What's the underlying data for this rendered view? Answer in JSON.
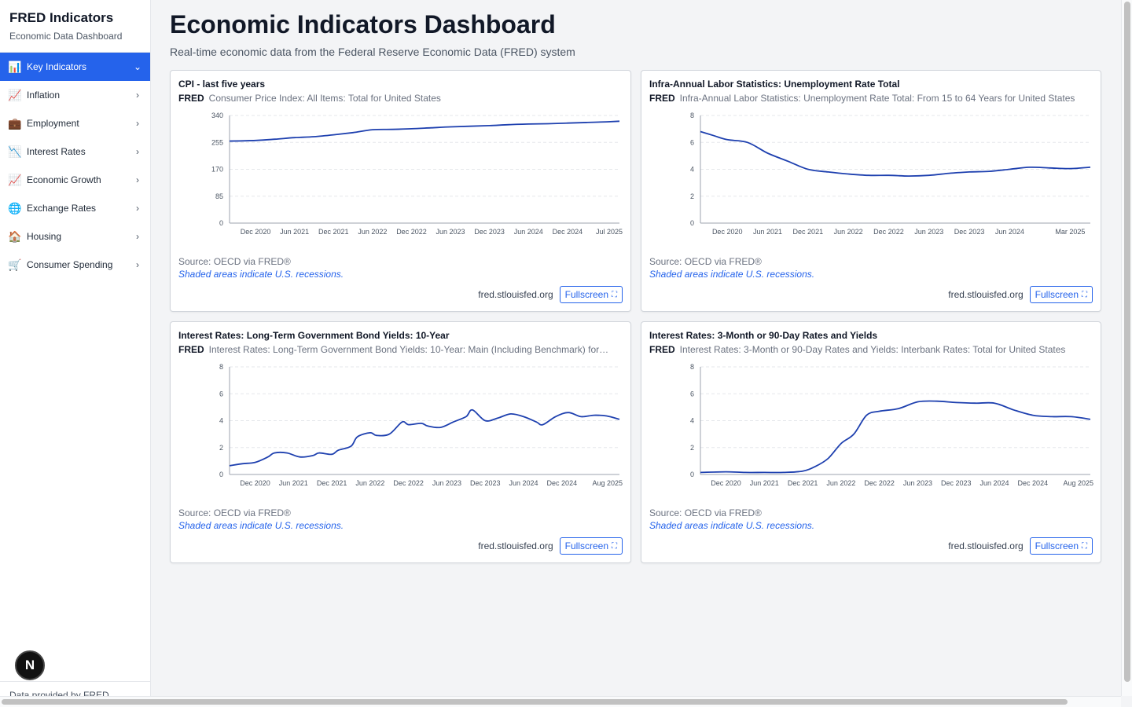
{
  "sidebar": {
    "title": "FRED Indicators",
    "subtitle": "Economic Data Dashboard",
    "items": [
      {
        "label": "Key Indicators",
        "icon": "bar-chart-icon",
        "glyph": "📊",
        "active": true
      },
      {
        "label": "Inflation",
        "icon": "trend-up-icon",
        "glyph": "📈",
        "active": false
      },
      {
        "label": "Employment",
        "icon": "briefcase-icon",
        "glyph": "💼",
        "active": false
      },
      {
        "label": "Interest Rates",
        "icon": "trend-down-icon",
        "glyph": "📉",
        "active": false
      },
      {
        "label": "Economic Growth",
        "icon": "trend-up-icon",
        "glyph": "📈",
        "active": false
      },
      {
        "label": "Exchange Rates",
        "icon": "globe-icon",
        "glyph": "🌐",
        "active": false
      },
      {
        "label": "Housing",
        "icon": "house-icon",
        "glyph": "🏠",
        "active": false
      },
      {
        "label": "Consumer Spending",
        "icon": "cart-icon",
        "glyph": "🛒",
        "active": false
      }
    ],
    "footer": "Data provided by FRED",
    "badge": "N"
  },
  "header": {
    "title": "Economic Indicators Dashboard",
    "subtitle": "Real-time economic data from the Federal Reserve Economic Data (FRED) system"
  },
  "cards": [
    {
      "title": "CPI - last five years",
      "fred": "FRED",
      "description": "Consumer Price Index: All Items: Total for United States",
      "source": "Source: OECD via FRED®",
      "note": "Shaded areas indicate U.S. recessions.",
      "domain": "fred.stlouisfed.org",
      "button": "Fullscreen"
    },
    {
      "title": "Infra-Annual Labor Statistics: Unemployment Rate Total",
      "fred": "FRED",
      "description": "Infra-Annual Labor Statistics: Unemployment Rate Total: From 15 to 64 Years for United States",
      "source": "Source: OECD via FRED®",
      "note": "Shaded areas indicate U.S. recessions.",
      "domain": "fred.stlouisfed.org",
      "button": "Fullscreen"
    },
    {
      "title": "Interest Rates: Long-Term Government Bond Yields: 10-Year",
      "fred": "FRED",
      "description": "Interest Rates: Long-Term Government Bond Yields: 10-Year: Main (Including Benchmark) for…",
      "source": "Source: OECD via FRED®",
      "note": "Shaded areas indicate U.S. recessions.",
      "domain": "fred.stlouisfed.org",
      "button": "Fullscreen"
    },
    {
      "title": "Interest Rates: 3-Month or 90-Day Rates and Yields",
      "fred": "FRED",
      "description": "Interest Rates: 3-Month or 90-Day Rates and Yields: Interbank Rates: Total for United States",
      "source": "Source: OECD via FRED®",
      "note": "Shaded areas indicate U.S. recessions.",
      "domain": "fred.stlouisfed.org",
      "button": "Fullscreen"
    }
  ],
  "colors": {
    "accent": "#2563eb",
    "line": "#1e40af",
    "grid": "#e5e7eb"
  },
  "chart_data": [
    {
      "type": "line",
      "ylim": [
        0,
        340
      ],
      "yticks": [
        "0",
        "85",
        "170",
        "255",
        "340"
      ],
      "xticks": [
        "Dec 2020",
        "Jun 2021",
        "Dec 2021",
        "Jun 2022",
        "Dec 2022",
        "Jun 2023",
        "Dec 2023",
        "Jun 2024",
        "Dec 2024",
        "Jul 2025"
      ],
      "x_range": [
        "2020-08",
        "2025-08"
      ],
      "grid": true,
      "points": [
        [
          "2020-08",
          259
        ],
        [
          "2020-12",
          261
        ],
        [
          "2021-03",
          265
        ],
        [
          "2021-06",
          270
        ],
        [
          "2021-09",
          273
        ],
        [
          "2021-12",
          279
        ],
        [
          "2022-03",
          286
        ],
        [
          "2022-06",
          295
        ],
        [
          "2022-09",
          296
        ],
        [
          "2022-12",
          298
        ],
        [
          "2023-03",
          301
        ],
        [
          "2023-06",
          304
        ],
        [
          "2023-09",
          306
        ],
        [
          "2023-12",
          308
        ],
        [
          "2024-03",
          311
        ],
        [
          "2024-06",
          313
        ],
        [
          "2024-09",
          314
        ],
        [
          "2024-12",
          316
        ],
        [
          "2025-03",
          318
        ],
        [
          "2025-06",
          320
        ],
        [
          "2025-08",
          322
        ]
      ]
    },
    {
      "type": "line",
      "ylim": [
        0,
        8
      ],
      "yticks": [
        "0",
        "2",
        "4",
        "6",
        "8"
      ],
      "xticks": [
        "Dec 2020",
        "Jun 2021",
        "Dec 2021",
        "Jun 2022",
        "Dec 2022",
        "Jun 2023",
        "Dec 2023",
        "Jun 2024",
        "Mar 2025"
      ],
      "x_range": [
        "2020-08",
        "2025-06"
      ],
      "grid": true,
      "points": [
        [
          "2020-08",
          6.8
        ],
        [
          "2020-10",
          6.5
        ],
        [
          "2020-12",
          6.2
        ],
        [
          "2021-03",
          6.0
        ],
        [
          "2021-06",
          5.2
        ],
        [
          "2021-09",
          4.6
        ],
        [
          "2021-12",
          4.0
        ],
        [
          "2022-03",
          3.8
        ],
        [
          "2022-06",
          3.65
        ],
        [
          "2022-09",
          3.55
        ],
        [
          "2022-12",
          3.55
        ],
        [
          "2023-03",
          3.5
        ],
        [
          "2023-06",
          3.55
        ],
        [
          "2023-09",
          3.7
        ],
        [
          "2023-12",
          3.8
        ],
        [
          "2024-03",
          3.85
        ],
        [
          "2024-06",
          4.0
        ],
        [
          "2024-09",
          4.15
        ],
        [
          "2024-12",
          4.1
        ],
        [
          "2025-03",
          4.05
        ],
        [
          "2025-06",
          4.15
        ]
      ]
    },
    {
      "type": "line",
      "ylim": [
        0,
        8
      ],
      "yticks": [
        "0",
        "2",
        "4",
        "6",
        "8"
      ],
      "xticks": [
        "Dec 2020",
        "Jun 2021",
        "Dec 2021",
        "Jun 2022",
        "Dec 2022",
        "Jun 2023",
        "Dec 2023",
        "Jun 2024",
        "Dec 2024",
        "Aug 2025"
      ],
      "x_range": [
        "2020-08",
        "2025-09"
      ],
      "grid": true,
      "points": [
        [
          "2020-08",
          0.65
        ],
        [
          "2020-10",
          0.8
        ],
        [
          "2020-12",
          0.9
        ],
        [
          "2021-02",
          1.3
        ],
        [
          "2021-03",
          1.6
        ],
        [
          "2021-05",
          1.6
        ],
        [
          "2021-07",
          1.3
        ],
        [
          "2021-09",
          1.4
        ],
        [
          "2021-10",
          1.6
        ],
        [
          "2021-12",
          1.5
        ],
        [
          "2022-01",
          1.8
        ],
        [
          "2022-03",
          2.1
        ],
        [
          "2022-04",
          2.8
        ],
        [
          "2022-06",
          3.1
        ],
        [
          "2022-07",
          2.9
        ],
        [
          "2022-09",
          3.0
        ],
        [
          "2022-11",
          3.9
        ],
        [
          "2022-12",
          3.7
        ],
        [
          "2023-02",
          3.8
        ],
        [
          "2023-03",
          3.6
        ],
        [
          "2023-05",
          3.5
        ],
        [
          "2023-07",
          3.9
        ],
        [
          "2023-09",
          4.3
        ],
        [
          "2023-10",
          4.8
        ],
        [
          "2023-12",
          4.0
        ],
        [
          "2024-02",
          4.2
        ],
        [
          "2024-04",
          4.5
        ],
        [
          "2024-06",
          4.3
        ],
        [
          "2024-08",
          3.9
        ],
        [
          "2024-09",
          3.7
        ],
        [
          "2024-11",
          4.3
        ],
        [
          "2025-01",
          4.6
        ],
        [
          "2025-03",
          4.3
        ],
        [
          "2025-05",
          4.4
        ],
        [
          "2025-07",
          4.35
        ],
        [
          "2025-09",
          4.1
        ]
      ]
    },
    {
      "type": "line",
      "ylim": [
        0,
        8
      ],
      "yticks": [
        "0",
        "2",
        "4",
        "6",
        "8"
      ],
      "xticks": [
        "Dec 2020",
        "Jun 2021",
        "Dec 2021",
        "Jun 2022",
        "Dec 2022",
        "Jun 2023",
        "Dec 2023",
        "Jun 2024",
        "Dec 2024",
        "Aug 2025"
      ],
      "x_range": [
        "2020-08",
        "2025-09"
      ],
      "grid": true,
      "points": [
        [
          "2020-08",
          0.15
        ],
        [
          "2020-12",
          0.2
        ],
        [
          "2021-03",
          0.15
        ],
        [
          "2021-06",
          0.15
        ],
        [
          "2021-09",
          0.15
        ],
        [
          "2021-12",
          0.25
        ],
        [
          "2022-02",
          0.6
        ],
        [
          "2022-04",
          1.2
        ],
        [
          "2022-06",
          2.3
        ],
        [
          "2022-08",
          3.0
        ],
        [
          "2022-10",
          4.4
        ],
        [
          "2022-12",
          4.7
        ],
        [
          "2023-03",
          4.9
        ],
        [
          "2023-06",
          5.4
        ],
        [
          "2023-09",
          5.45
        ],
        [
          "2023-12",
          5.35
        ],
        [
          "2024-03",
          5.3
        ],
        [
          "2024-06",
          5.3
        ],
        [
          "2024-09",
          4.8
        ],
        [
          "2024-12",
          4.4
        ],
        [
          "2025-03",
          4.3
        ],
        [
          "2025-06",
          4.3
        ],
        [
          "2025-09",
          4.1
        ]
      ]
    }
  ]
}
